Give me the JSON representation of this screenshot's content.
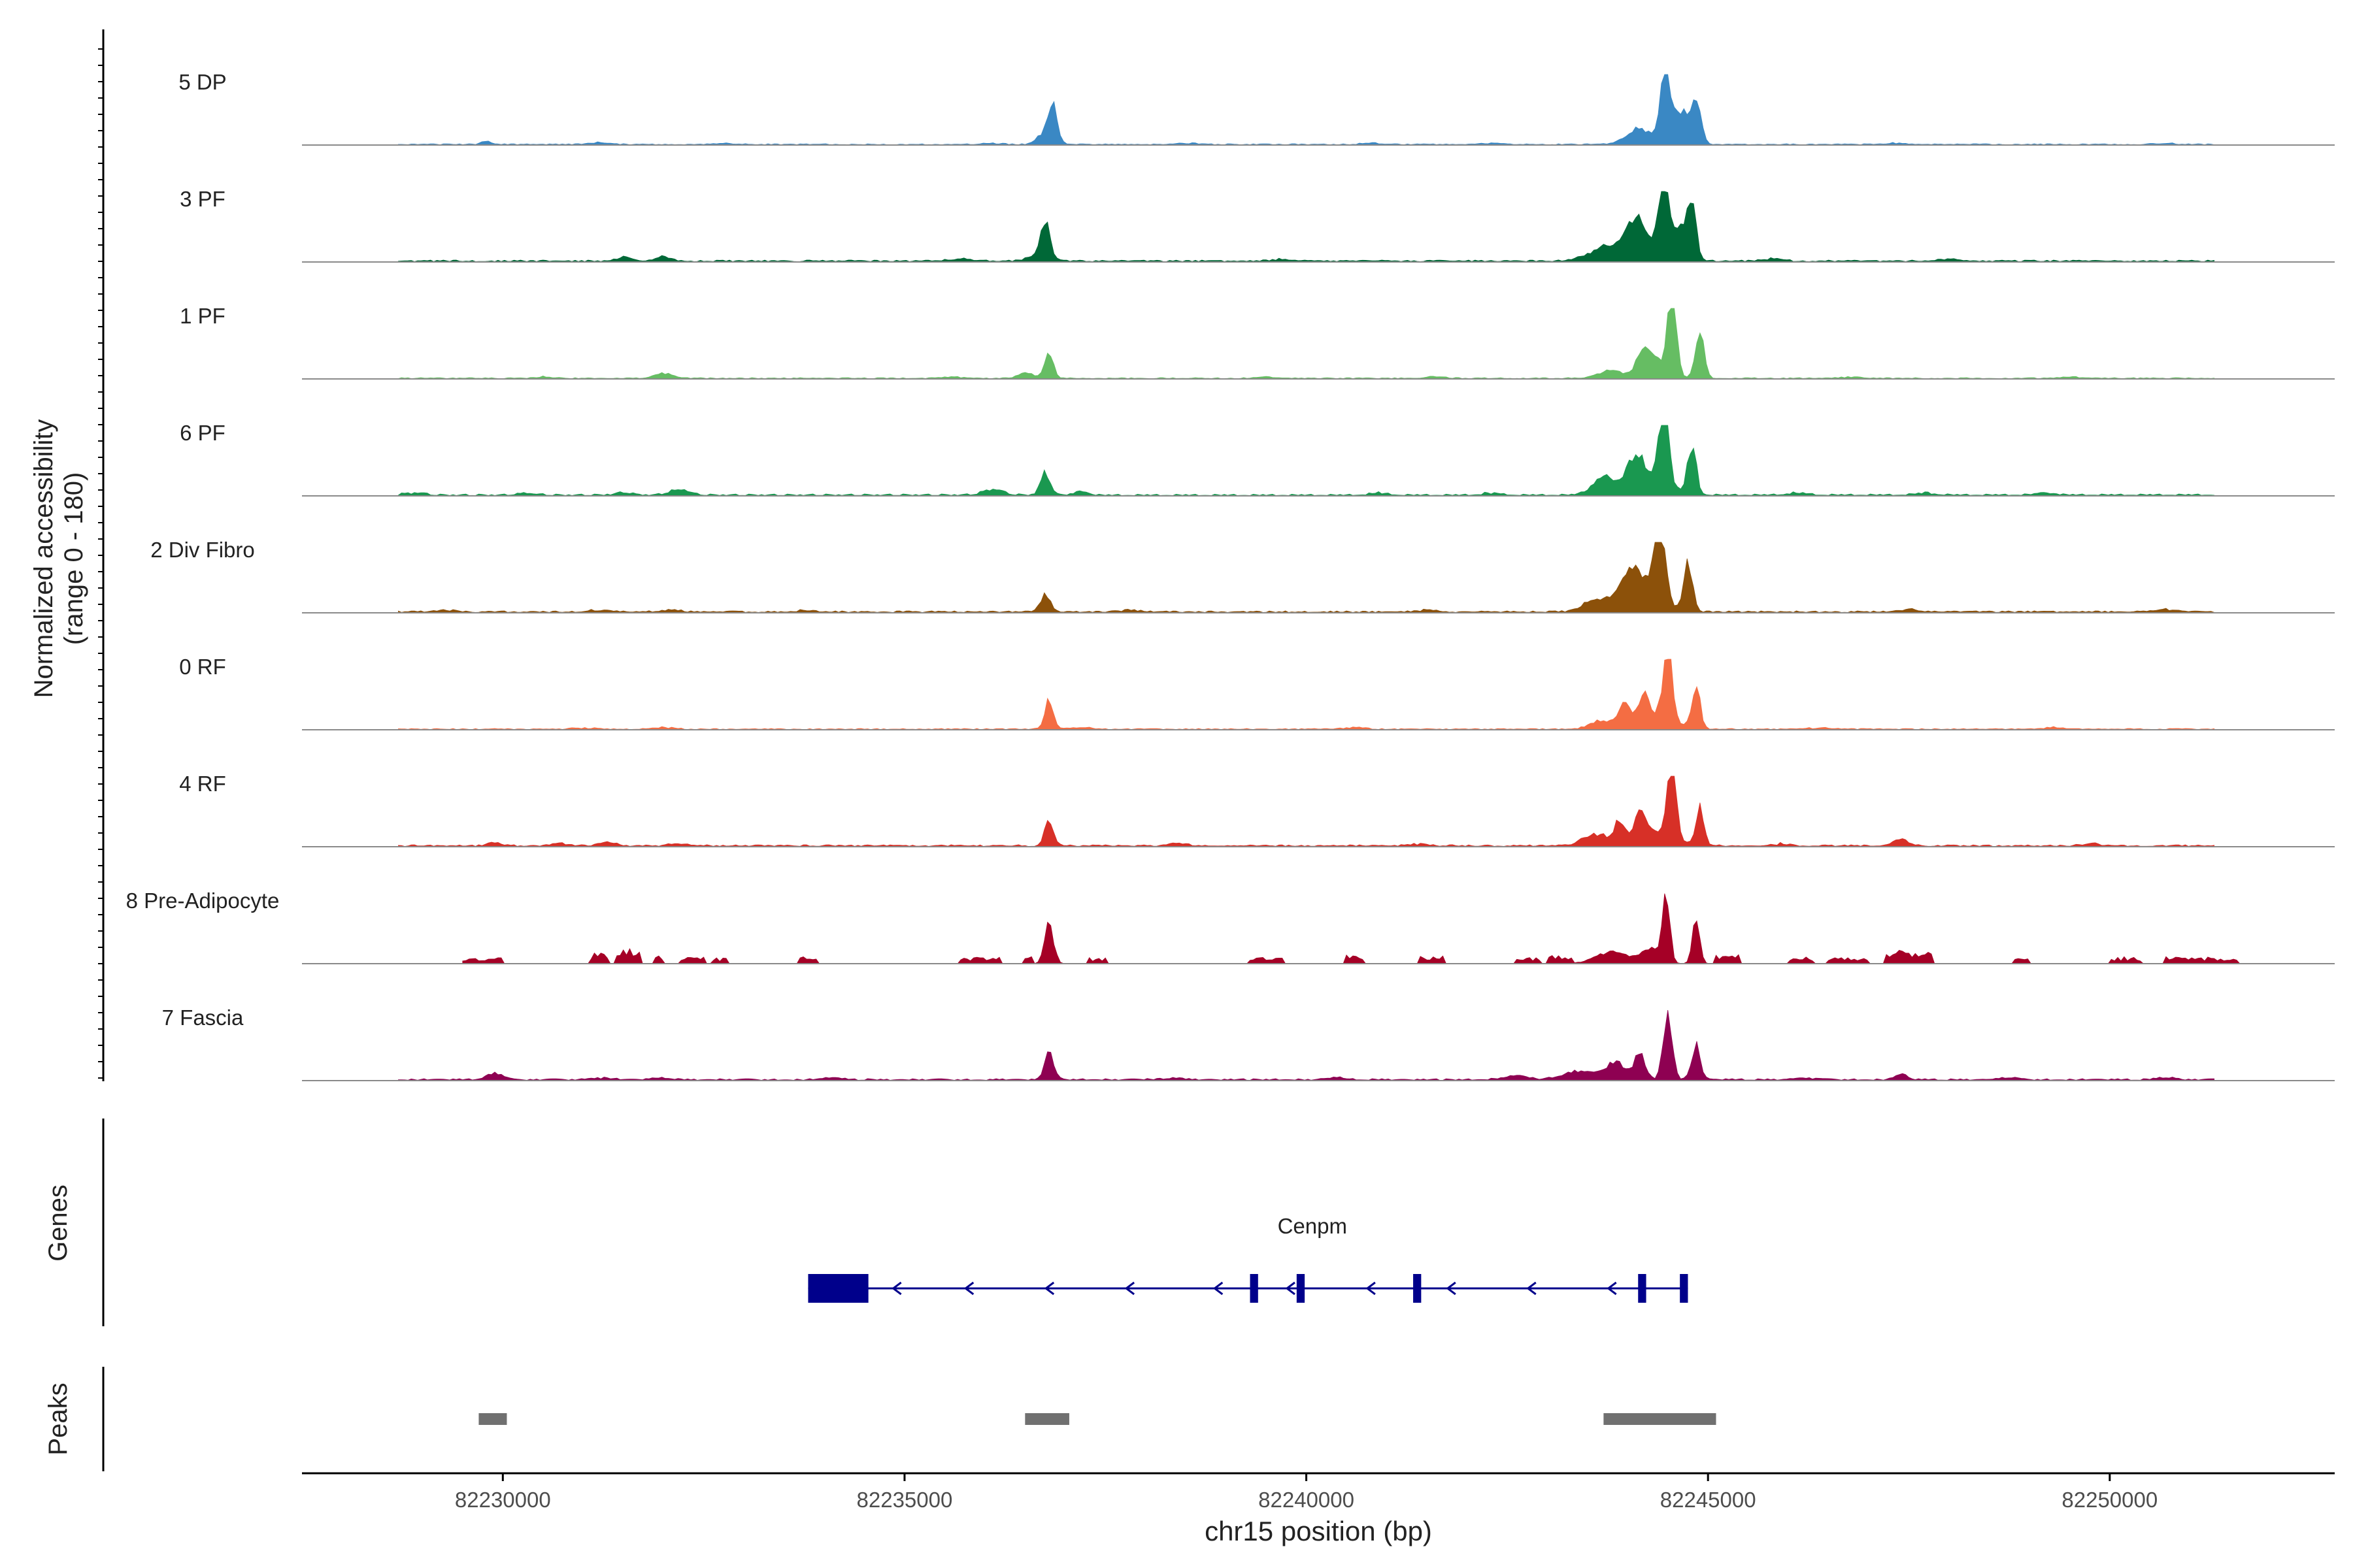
{
  "chart_data": {
    "type": "area",
    "title": "",
    "ylabel_line1": "Normalized accessibility",
    "ylabel_line2": "(range 0 - 180)",
    "xlabel": "chr15 position (bp)",
    "xlim": [
      82227500,
      82252800
    ],
    "ylim": [
      0,
      180
    ],
    "xticks": [
      82230000,
      82235000,
      82240000,
      82245000,
      82250000
    ],
    "xtick_labels": [
      "82230000",
      "82235000",
      "82240000",
      "82245000",
      "82250000"
    ],
    "series": [
      {
        "name": "5 DP",
        "color": "#3A88C4",
        "baseline": 2,
        "start": 82228700,
        "end": 82251300,
        "peaks": [
          [
            82229800,
            8,
            60
          ],
          [
            82236850,
            85,
            55
          ],
          [
            82236750,
            30,
            90
          ],
          [
            82244150,
            40,
            160
          ],
          [
            82244470,
            190,
            60
          ],
          [
            82244850,
            120,
            60
          ],
          [
            82244650,
            90,
            90
          ]
        ],
        "smalls": [
          [
            82231200,
            4
          ],
          [
            82232800,
            3
          ],
          [
            82236100,
            3
          ],
          [
            82238500,
            3
          ],
          [
            82240800,
            3
          ],
          [
            82242300,
            3
          ],
          [
            82247300,
            3
          ],
          [
            82250700,
            3
          ]
        ]
      },
      {
        "name": "3 PF",
        "color": "#006837",
        "baseline": 3,
        "start": 82228700,
        "end": 82251300,
        "peaks": [
          [
            82231500,
            10,
            100
          ],
          [
            82232000,
            12,
            80
          ],
          [
            82236750,
            85,
            55
          ],
          [
            82236700,
            18,
            130
          ],
          [
            82243700,
            30,
            200
          ],
          [
            82244100,
            65,
            110
          ],
          [
            82244450,
            210,
            60
          ],
          [
            82244800,
            130,
            55
          ],
          [
            82244650,
            70,
            80
          ],
          [
            82244200,
            50,
            260
          ]
        ],
        "smalls": [
          [
            82235700,
            6
          ],
          [
            82239700,
            5
          ],
          [
            82245800,
            5
          ],
          [
            82248000,
            5
          ]
        ]
      },
      {
        "name": "1 PF",
        "color": "#66BD63",
        "baseline": 2,
        "start": 82228700,
        "end": 82251300,
        "peaks": [
          [
            82232000,
            12,
            120
          ],
          [
            82236800,
            65,
            55
          ],
          [
            82236500,
            14,
            90
          ],
          [
            82244180,
            45,
            70
          ],
          [
            82244550,
            230,
            55
          ],
          [
            82244900,
            120,
            55
          ],
          [
            82244300,
            60,
            120
          ],
          [
            82243800,
            20,
            160
          ]
        ],
        "smalls": [
          [
            82230500,
            4
          ],
          [
            82235600,
            4
          ],
          [
            82239500,
            4
          ],
          [
            82241600,
            4
          ],
          [
            82246800,
            4
          ],
          [
            82249500,
            4
          ]
        ]
      },
      {
        "name": "6 PF",
        "color": "#1A9850",
        "baseline": 3,
        "start": 82228700,
        "end": 82251300,
        "peaks": [
          [
            82232200,
            14,
            120
          ],
          [
            82236750,
            55,
            60
          ],
          [
            82236100,
            14,
            120
          ],
          [
            82237200,
            10,
            80
          ],
          [
            82244450,
            220,
            60
          ],
          [
            82244800,
            120,
            55
          ],
          [
            82244100,
            60,
            90
          ],
          [
            82243700,
            40,
            140
          ],
          [
            82244200,
            50,
            250
          ]
        ],
        "smalls": [
          [
            82228900,
            6
          ],
          [
            82230300,
            5
          ],
          [
            82231500,
            5
          ],
          [
            82240900,
            5
          ],
          [
            82242300,
            5
          ],
          [
            82246100,
            5
          ],
          [
            82247700,
            5
          ],
          [
            82249200,
            5
          ]
        ]
      },
      {
        "name": "2 Div Fibro",
        "color": "#8C510A",
        "baseline": 3,
        "start": 82228700,
        "end": 82251300,
        "peaks": [
          [
            82236750,
            45,
            60
          ],
          [
            82244400,
            220,
            65
          ],
          [
            82244750,
            120,
            55
          ],
          [
            82244050,
            70,
            110
          ],
          [
            82243600,
            30,
            150
          ],
          [
            82244150,
            60,
            240
          ]
        ],
        "smalls": [
          [
            82229300,
            5
          ],
          [
            82231200,
            5
          ],
          [
            82232100,
            6
          ],
          [
            82233800,
            5
          ],
          [
            82237800,
            5
          ],
          [
            82241500,
            5
          ],
          [
            82247500,
            5
          ],
          [
            82250700,
            6
          ]
        ]
      },
      {
        "name": "0 RF",
        "color": "#F46D43",
        "baseline": 2,
        "start": 82228700,
        "end": 82251300,
        "peaks": [
          [
            82236800,
            75,
            55
          ],
          [
            82243950,
            50,
            70
          ],
          [
            82244200,
            55,
            60
          ],
          [
            82244500,
            200,
            55
          ],
          [
            82244850,
            110,
            50
          ],
          [
            82243650,
            20,
            130
          ],
          [
            82244300,
            40,
            250
          ]
        ],
        "smalls": [
          [
            82231000,
            4
          ],
          [
            82232000,
            4
          ],
          [
            82237200,
            4
          ],
          [
            82240600,
            4
          ],
          [
            82246400,
            4
          ],
          [
            82249300,
            4
          ]
        ]
      },
      {
        "name": "4 RF",
        "color": "#D73027",
        "baseline": 3,
        "start": 82228700,
        "end": 82251300,
        "peaks": [
          [
            82229900,
            8,
            80
          ],
          [
            82231300,
            10,
            90
          ],
          [
            82236800,
            65,
            55
          ],
          [
            82243900,
            55,
            60
          ],
          [
            82244150,
            60,
            55
          ],
          [
            82244550,
            180,
            55
          ],
          [
            82244900,
            95,
            50
          ],
          [
            82243600,
            30,
            150
          ],
          [
            82247400,
            16,
            90
          ],
          [
            82244300,
            40,
            250
          ]
        ],
        "smalls": [
          [
            82230700,
            5
          ],
          [
            82232200,
            5
          ],
          [
            82238400,
            5
          ],
          [
            82241400,
            5
          ],
          [
            82245900,
            5
          ],
          [
            82249800,
            5
          ]
        ]
      },
      {
        "name": "8 Pre-Adipocyte",
        "color": "#A50026",
        "baseline": 0,
        "start": 82229500,
        "end": 82251700,
        "peaks": [
          [
            82236800,
            100,
            55
          ],
          [
            82244480,
            170,
            45
          ],
          [
            82244850,
            110,
            45
          ],
          [
            82243800,
            30,
            200
          ],
          [
            82244300,
            40,
            120
          ]
        ],
        "blocks": [
          [
            82229500,
            82230000,
            12
          ],
          [
            82231100,
            82231300,
            22
          ],
          [
            82231400,
            82231700,
            30
          ],
          [
            82231900,
            82232000,
            16
          ],
          [
            82232200,
            82232500,
            14
          ],
          [
            82232600,
            82232800,
            12
          ],
          [
            82233700,
            82233900,
            14
          ],
          [
            82235700,
            82236200,
            14
          ],
          [
            82236500,
            82236600,
            14
          ],
          [
            82237300,
            82237500,
            12
          ],
          [
            82239300,
            82239700,
            14
          ],
          [
            82240500,
            82240700,
            18
          ],
          [
            82241400,
            82241700,
            16
          ],
          [
            82242600,
            82242900,
            14
          ],
          [
            82243000,
            82243300,
            16
          ],
          [
            82245100,
            82245400,
            18
          ],
          [
            82246000,
            82246300,
            14
          ],
          [
            82246500,
            82247000,
            12
          ],
          [
            82247200,
            82247800,
            28
          ],
          [
            82248800,
            82249000,
            12
          ],
          [
            82250000,
            82250400,
            14
          ],
          [
            82250700,
            82251600,
            14
          ]
        ]
      },
      {
        "name": "7 Fascia",
        "color": "#8E0152",
        "baseline": 3,
        "start": 82228700,
        "end": 82251300,
        "peaks": [
          [
            82229900,
            16,
            110
          ],
          [
            82236800,
            80,
            55
          ],
          [
            82243850,
            45,
            120
          ],
          [
            82244150,
            60,
            70
          ],
          [
            82244500,
            175,
            55
          ],
          [
            82244850,
            85,
            55
          ],
          [
            82243400,
            20,
            200
          ],
          [
            82247400,
            14,
            70
          ],
          [
            82242600,
            10,
            150
          ]
        ],
        "smalls": [
          [
            82231200,
            6
          ],
          [
            82232000,
            5
          ],
          [
            82234100,
            5
          ],
          [
            82238300,
            5
          ],
          [
            82240400,
            5
          ],
          [
            82246200,
            5
          ],
          [
            82248700,
            5
          ],
          [
            82250700,
            6
          ]
        ]
      }
    ],
    "genes": {
      "panel_label": "Genes",
      "name": "Cenpm",
      "color": "#00008B",
      "start": 82233800,
      "end": 82244750,
      "exons": [
        [
          82233800,
          82234550
        ],
        [
          82239300,
          82239400
        ],
        [
          82239880,
          82239980
        ],
        [
          82241330,
          82241430
        ],
        [
          82244130,
          82244230
        ],
        [
          82244650,
          82244750
        ]
      ],
      "strand": "-"
    },
    "peaks_track": {
      "panel_label": "Peaks",
      "color": "#707070",
      "regions": [
        [
          82229700,
          82230050
        ],
        [
          82236500,
          82237050
        ],
        [
          82243700,
          82245100
        ]
      ]
    }
  }
}
